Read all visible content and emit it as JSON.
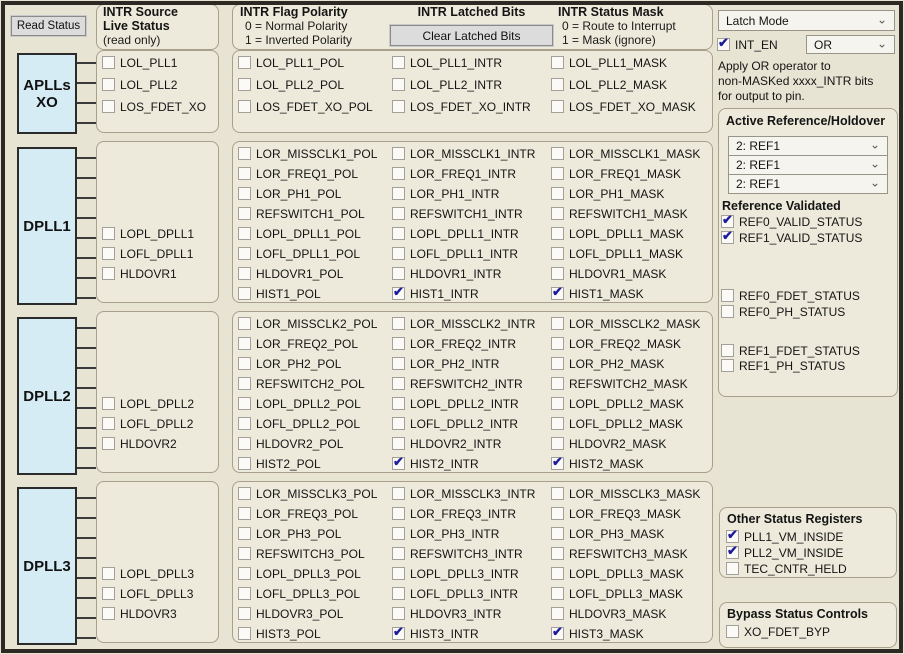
{
  "palette": {
    "background": "#e8e4d3",
    "box_fill": "#edeadb",
    "box_border": "#a89f8d",
    "block_blue": "#d6ecf4",
    "check_color": "#1d1d9c",
    "button_gray": "#dcdcdc",
    "frame_dark": "#2d2a26"
  },
  "left": {
    "read_status_button": "Read Status"
  },
  "headers": {
    "live": {
      "line1": "INTR Source",
      "line2": "Live Status",
      "line3": "(read only)"
    },
    "polarity": {
      "title": "INTR Flag Polarity",
      "sub1": "0 = Normal Polarity",
      "sub2": "1 = Inverted Polarity"
    },
    "latched": {
      "title": "INTR Latched Bits",
      "clear_button": "Clear Latched Bits"
    },
    "mask": {
      "title": "INTR Status Mask",
      "sub1": "0 = Route to Interrupt",
      "sub2": "1 = Mask (ignore)"
    }
  },
  "bands": [
    {
      "id": "aplls-xo",
      "block": [
        "APLLs",
        "XO"
      ],
      "live": [
        {
          "label": "LOL_PLL1",
          "checked": false,
          "row": 0
        },
        {
          "label": "LOL_PLL2",
          "checked": false,
          "row": 1
        },
        {
          "label": "LOS_FDET_XO",
          "checked": false,
          "row": 2
        }
      ],
      "pol": [
        {
          "label": "LOL_PLL1_POL",
          "checked": false
        },
        {
          "label": "LOL_PLL2_POL",
          "checked": false
        },
        {
          "label": "LOS_FDET_XO_POL",
          "checked": false
        }
      ],
      "intr": [
        {
          "label": "LOL_PLL1_INTR",
          "checked": false
        },
        {
          "label": "LOL_PLL2_INTR",
          "checked": false
        },
        {
          "label": "LOS_FDET_XO_INTR",
          "checked": false
        }
      ],
      "mask": [
        {
          "label": "LOL_PLL1_MASK",
          "checked": false
        },
        {
          "label": "LOL_PLL2_MASK",
          "checked": false
        },
        {
          "label": "LOS_FDET_XO_MASK",
          "checked": false
        }
      ]
    },
    {
      "id": "dpll1",
      "block": [
        "DPLL1"
      ],
      "live": [
        {
          "label": "LOPL_DPLL1",
          "checked": false,
          "row": 4
        },
        {
          "label": "LOFL_DPLL1",
          "checked": false,
          "row": 5
        },
        {
          "label": "HLDOVR1",
          "checked": false,
          "row": 6
        }
      ],
      "pol": [
        {
          "label": "LOR_MISSCLK1_POL",
          "checked": false
        },
        {
          "label": "LOR_FREQ1_POL",
          "checked": false
        },
        {
          "label": "LOR_PH1_POL",
          "checked": false
        },
        {
          "label": "REFSWITCH1_POL",
          "checked": false
        },
        {
          "label": "LOPL_DPLL1_POL",
          "checked": false
        },
        {
          "label": "LOFL_DPLL1_POL",
          "checked": false
        },
        {
          "label": "HLDOVR1_POL",
          "checked": false
        },
        {
          "label": "HIST1_POL",
          "checked": false
        }
      ],
      "intr": [
        {
          "label": "LOR_MISSCLK1_INTR",
          "checked": false
        },
        {
          "label": "LOR_FREQ1_INTR",
          "checked": false
        },
        {
          "label": "LOR_PH1_INTR",
          "checked": false
        },
        {
          "label": "REFSWITCH1_INTR",
          "checked": false
        },
        {
          "label": "LOPL_DPLL1_INTR",
          "checked": false
        },
        {
          "label": "LOFL_DPLL1_INTR",
          "checked": false
        },
        {
          "label": "HLDOVR1_INTR",
          "checked": false
        },
        {
          "label": "HIST1_INTR",
          "checked": true
        }
      ],
      "mask": [
        {
          "label": "LOR_MISSCLK1_MASK",
          "checked": false
        },
        {
          "label": "LOR_FREQ1_MASK",
          "checked": false
        },
        {
          "label": "LOR_PH1_MASK",
          "checked": false
        },
        {
          "label": "REFSWITCH1_MASK",
          "checked": false
        },
        {
          "label": "LOPL_DPLL1_MASK",
          "checked": false
        },
        {
          "label": "LOFL_DPLL1_MASK",
          "checked": false
        },
        {
          "label": "HLDOVR1_MASK",
          "checked": false
        },
        {
          "label": "HIST1_MASK",
          "checked": true
        }
      ]
    },
    {
      "id": "dpll2",
      "block": [
        "DPLL2"
      ],
      "live": [
        {
          "label": "LOPL_DPLL2",
          "checked": false,
          "row": 4
        },
        {
          "label": "LOFL_DPLL2",
          "checked": false,
          "row": 5
        },
        {
          "label": "HLDOVR2",
          "checked": false,
          "row": 6
        }
      ],
      "pol": [
        {
          "label": "LOR_MISSCLK2_POL",
          "checked": false
        },
        {
          "label": "LOR_FREQ2_POL",
          "checked": false
        },
        {
          "label": "LOR_PH2_POL",
          "checked": false
        },
        {
          "label": "REFSWITCH2_POL",
          "checked": false
        },
        {
          "label": "LOPL_DPLL2_POL",
          "checked": false
        },
        {
          "label": "LOFL_DPLL2_POL",
          "checked": false
        },
        {
          "label": "HLDOVR2_POL",
          "checked": false
        },
        {
          "label": "HIST2_POL",
          "checked": false
        }
      ],
      "intr": [
        {
          "label": "LOR_MISSCLK2_INTR",
          "checked": false
        },
        {
          "label": "LOR_FREQ2_INTR",
          "checked": false
        },
        {
          "label": "LOR_PH2_INTR",
          "checked": false
        },
        {
          "label": "REFSWITCH2_INTR",
          "checked": false
        },
        {
          "label": "LOPL_DPLL2_INTR",
          "checked": false
        },
        {
          "label": "LOFL_DPLL2_INTR",
          "checked": false
        },
        {
          "label": "HLDOVR2_INTR",
          "checked": false
        },
        {
          "label": "HIST2_INTR",
          "checked": true
        }
      ],
      "mask": [
        {
          "label": "LOR_MISSCLK2_MASK",
          "checked": false
        },
        {
          "label": "LOR_FREQ2_MASK",
          "checked": false
        },
        {
          "label": "LOR_PH2_MASK",
          "checked": false
        },
        {
          "label": "REFSWITCH2_MASK",
          "checked": false
        },
        {
          "label": "LOPL_DPLL2_MASK",
          "checked": false
        },
        {
          "label": "LOFL_DPLL2_MASK",
          "checked": false
        },
        {
          "label": "HLDOVR2_MASK",
          "checked": false
        },
        {
          "label": "HIST2_MASK",
          "checked": true
        }
      ]
    },
    {
      "id": "dpll3",
      "block": [
        "DPLL3"
      ],
      "live": [
        {
          "label": "LOPL_DPLL3",
          "checked": false,
          "row": 4
        },
        {
          "label": "LOFL_DPLL3",
          "checked": false,
          "row": 5
        },
        {
          "label": "HLDOVR3",
          "checked": false,
          "row": 6
        }
      ],
      "pol": [
        {
          "label": "LOR_MISSCLK3_POL",
          "checked": false
        },
        {
          "label": "LOR_FREQ3_POL",
          "checked": false
        },
        {
          "label": "LOR_PH3_POL",
          "checked": false
        },
        {
          "label": "REFSWITCH3_POL",
          "checked": false
        },
        {
          "label": "LOPL_DPLL3_POL",
          "checked": false
        },
        {
          "label": "LOFL_DPLL3_POL",
          "checked": false
        },
        {
          "label": "HLDOVR3_POL",
          "checked": false
        },
        {
          "label": "HIST3_POL",
          "checked": false
        }
      ],
      "intr": [
        {
          "label": "LOR_MISSCLK3_INTR",
          "checked": false
        },
        {
          "label": "LOR_FREQ3_INTR",
          "checked": false
        },
        {
          "label": "LOR_PH3_INTR",
          "checked": false
        },
        {
          "label": "REFSWITCH3_INTR",
          "checked": false
        },
        {
          "label": "LOPL_DPLL3_INTR",
          "checked": false
        },
        {
          "label": "LOFL_DPLL3_INTR",
          "checked": false
        },
        {
          "label": "HLDOVR3_INTR",
          "checked": false
        },
        {
          "label": "HIST3_INTR",
          "checked": true
        }
      ],
      "mask": [
        {
          "label": "LOR_MISSCLK3_MASK",
          "checked": false
        },
        {
          "label": "LOR_FREQ3_MASK",
          "checked": false
        },
        {
          "label": "LOR_PH3_MASK",
          "checked": false
        },
        {
          "label": "REFSWITCH3_MASK",
          "checked": false
        },
        {
          "label": "LOPL_DPLL3_MASK",
          "checked": false
        },
        {
          "label": "LOFL_DPLL3_MASK",
          "checked": false
        },
        {
          "label": "HLDOVR3_MASK",
          "checked": false
        },
        {
          "label": "HIST3_MASK",
          "checked": true
        }
      ]
    }
  ],
  "right": {
    "latch_mode": "Latch Mode",
    "int_en": {
      "label": "INT_EN",
      "checked": true
    },
    "or_operator": "OR",
    "note_lines": [
      "Apply OR operator to",
      "non-MASKed xxxx_INTR bits",
      "for output to pin."
    ],
    "active_reference": {
      "title": "Active Reference/Holdover",
      "selects": [
        "2: REF1",
        "2: REF1",
        "2: REF1"
      ]
    },
    "reference_validated": {
      "title": "Reference Validated",
      "items": [
        {
          "label": "REF0_VALID_STATUS",
          "checked": true
        },
        {
          "label": "REF1_VALID_STATUS",
          "checked": true
        },
        {
          "label": "REF0_FDET_STATUS",
          "checked": false
        },
        {
          "label": "REF0_PH_STATUS",
          "checked": false
        },
        {
          "label": "REF1_FDET_STATUS",
          "checked": false
        },
        {
          "label": "REF1_PH_STATUS",
          "checked": false
        }
      ]
    },
    "other_status": {
      "title": "Other Status Registers",
      "items": [
        {
          "label": "PLL1_VM_INSIDE",
          "checked": true
        },
        {
          "label": "PLL2_VM_INSIDE",
          "checked": true
        },
        {
          "label": "TEC_CNTR_HELD",
          "checked": false
        }
      ]
    },
    "bypass": {
      "title": "Bypass Status Controls",
      "items": [
        {
          "label": "XO_FDET_BYP",
          "checked": false
        }
      ]
    }
  }
}
